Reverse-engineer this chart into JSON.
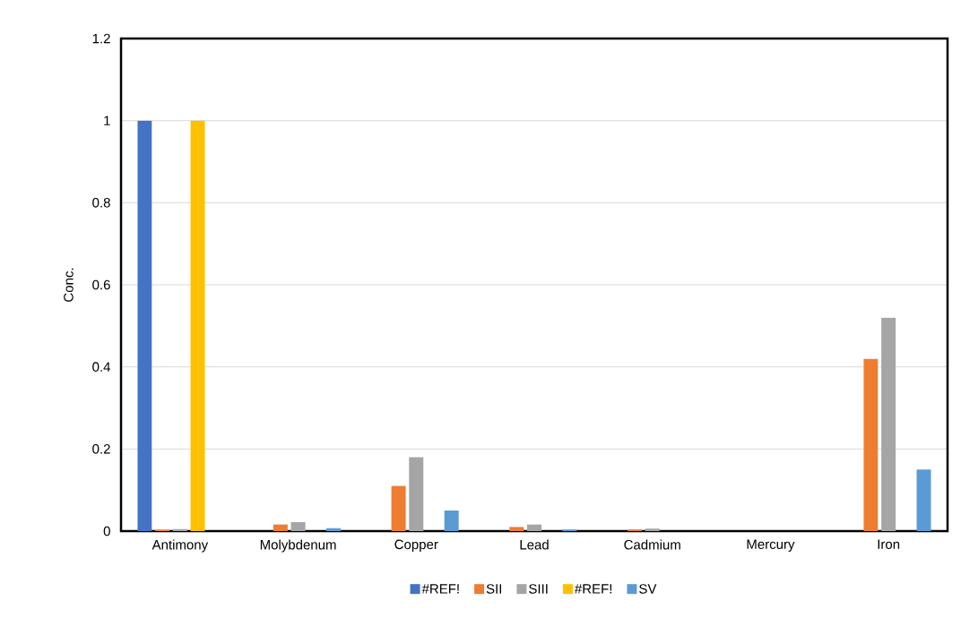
{
  "chart_data": {
    "type": "bar",
    "ylabel": "Conc.",
    "categories": [
      "Antimony",
      "Molybdenum",
      "Copper",
      "Lead",
      "Cadmium",
      "Mercury",
      "Iron"
    ],
    "series": [
      {
        "name": "#REF!",
        "color": "#4472c4",
        "values": [
          1,
          null,
          null,
          null,
          null,
          null,
          null
        ]
      },
      {
        "name": "SII",
        "color": "#ed7d31",
        "values": [
          0.003,
          0.016,
          0.11,
          0.01,
          0.004,
          0,
          0.42
        ]
      },
      {
        "name": "SIII",
        "color": "#a5a5a5",
        "values": [
          0.005,
          0.022,
          0.18,
          0.016,
          0.006,
          0,
          0.52
        ]
      },
      {
        "name": "#REF!",
        "color": "#ffc000",
        "values": [
          1,
          null,
          null,
          null,
          null,
          null,
          null
        ]
      },
      {
        "name": "SV",
        "color": "#5b9bd5",
        "values": [
          0,
          0.007,
          0.05,
          0.004,
          0,
          0,
          0.15
        ]
      }
    ],
    "ylim": [
      0,
      1.2
    ],
    "yticks": [
      0,
      0.2,
      0.4,
      0.6,
      0.8,
      1,
      1.2
    ],
    "grid": "y",
    "legend": "bottom"
  }
}
